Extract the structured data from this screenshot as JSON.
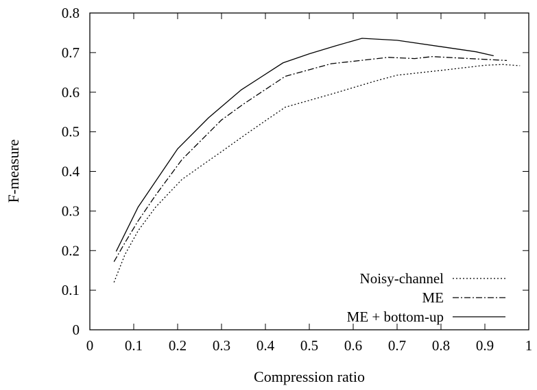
{
  "chart_data": {
    "type": "line",
    "title": "",
    "xlabel": "Compression ratio",
    "ylabel": "F-measure",
    "xlim": [
      0,
      1
    ],
    "ylim": [
      0,
      0.8
    ],
    "xticks": [
      {
        "value": 0,
        "label": "0"
      },
      {
        "value": 0.1,
        "label": "0.1"
      },
      {
        "value": 0.2,
        "label": "0.2"
      },
      {
        "value": 0.3,
        "label": "0.3"
      },
      {
        "value": 0.4,
        "label": "0.4"
      },
      {
        "value": 0.5,
        "label": "0.5"
      },
      {
        "value": 0.6,
        "label": "0.6"
      },
      {
        "value": 0.7,
        "label": "0.7"
      },
      {
        "value": 0.8,
        "label": "0.8"
      },
      {
        "value": 0.9,
        "label": "0.9"
      },
      {
        "value": 1,
        "label": "1"
      }
    ],
    "yticks": [
      {
        "value": 0,
        "label": "0"
      },
      {
        "value": 0.1,
        "label": "0.1"
      },
      {
        "value": 0.2,
        "label": "0.2"
      },
      {
        "value": 0.3,
        "label": "0.3"
      },
      {
        "value": 0.4,
        "label": "0.4"
      },
      {
        "value": 0.5,
        "label": "0.5"
      },
      {
        "value": 0.6,
        "label": "0.6"
      },
      {
        "value": 0.7,
        "label": "0.7"
      },
      {
        "value": 0.8,
        "label": "0.8"
      }
    ],
    "grid": false,
    "legend_position": "bottom-right",
    "series": [
      {
        "name": "Noisy-channel",
        "style": "dotted",
        "color": "#000000",
        "points": [
          [
            0.055,
            0.12
          ],
          [
            0.08,
            0.19
          ],
          [
            0.11,
            0.25
          ],
          [
            0.15,
            0.31
          ],
          [
            0.21,
            0.38
          ],
          [
            0.3,
            0.45
          ],
          [
            0.37,
            0.505
          ],
          [
            0.445,
            0.562
          ],
          [
            0.55,
            0.595
          ],
          [
            0.65,
            0.628
          ],
          [
            0.7,
            0.643
          ],
          [
            0.8,
            0.655
          ],
          [
            0.9,
            0.668
          ],
          [
            0.94,
            0.67
          ],
          [
            0.98,
            0.667
          ]
        ]
      },
      {
        "name": "ME",
        "style": "dash-dot",
        "color": "#000000",
        "points": [
          [
            0.055,
            0.172
          ],
          [
            0.08,
            0.22
          ],
          [
            0.11,
            0.275
          ],
          [
            0.15,
            0.34
          ],
          [
            0.21,
            0.43
          ],
          [
            0.3,
            0.53
          ],
          [
            0.35,
            0.57
          ],
          [
            0.445,
            0.64
          ],
          [
            0.55,
            0.672
          ],
          [
            0.6,
            0.678
          ],
          [
            0.68,
            0.688
          ],
          [
            0.74,
            0.685
          ],
          [
            0.78,
            0.69
          ],
          [
            0.88,
            0.684
          ],
          [
            0.95,
            0.68
          ]
        ]
      },
      {
        "name": "ME + bottom-up",
        "style": "solid",
        "color": "#000000",
        "points": [
          [
            0.06,
            0.198
          ],
          [
            0.11,
            0.31
          ],
          [
            0.2,
            0.457
          ],
          [
            0.27,
            0.535
          ],
          [
            0.345,
            0.606
          ],
          [
            0.44,
            0.674
          ],
          [
            0.5,
            0.697
          ],
          [
            0.56,
            0.717
          ],
          [
            0.62,
            0.736
          ],
          [
            0.7,
            0.731
          ],
          [
            0.8,
            0.715
          ],
          [
            0.88,
            0.702
          ],
          [
            0.92,
            0.692
          ]
        ]
      }
    ]
  }
}
